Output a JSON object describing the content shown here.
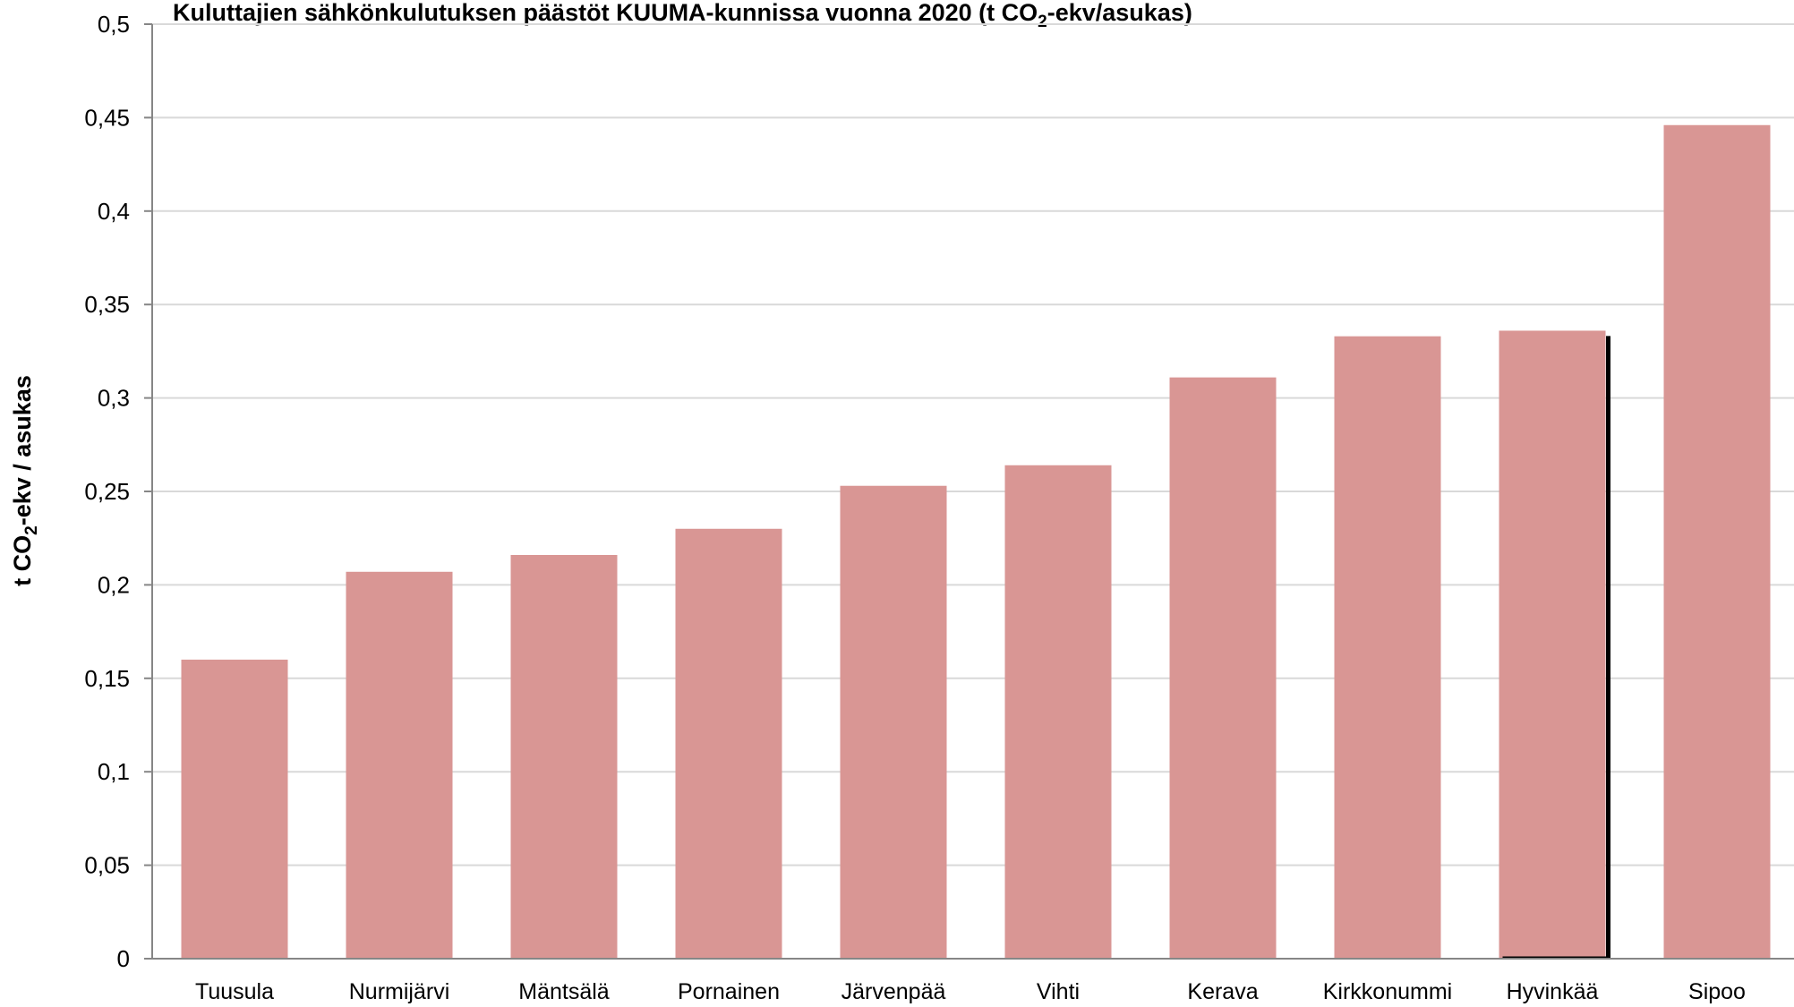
{
  "chart_data": {
    "type": "bar",
    "title": {
      "pre": "Kuluttajien sähkönkulutuksen päästöt KUUMA-kunnissa vuonna 2020 (t CO",
      "sub": "2",
      "post": "-ekv/asukas)"
    },
    "ylabel": {
      "pre": "t CO",
      "sub": "2",
      "post": "-ekv / asukas"
    },
    "categories": [
      "Tuusula",
      "Nurmijärvi",
      "Mäntsälä",
      "Pornainen",
      "Järvenpää",
      "Vihti",
      "Kerava",
      "Kirkkonummi",
      "Hyvinkää",
      "Sipoo"
    ],
    "values": [
      0.16,
      0.207,
      0.216,
      0.23,
      0.253,
      0.264,
      0.311,
      0.333,
      0.336,
      0.446
    ],
    "ylim": [
      0,
      0.5
    ],
    "yticks": [
      0,
      0.05,
      0.1,
      0.15,
      0.2,
      0.25,
      0.3,
      0.35,
      0.4,
      0.45,
      0.5
    ],
    "ytick_labels": [
      "0",
      "0,05",
      "0,1",
      "0,15",
      "0,2",
      "0,25",
      "0,3",
      "0,35",
      "0,4",
      "0,45",
      "0,5"
    ],
    "grid": true,
    "legend": "none",
    "colors": {
      "bar": "#d99694",
      "grid": "#d9d9d9",
      "axis": "#868686",
      "highlight_border": "#000000"
    },
    "highlighted_category": "Hyvinkää"
  }
}
